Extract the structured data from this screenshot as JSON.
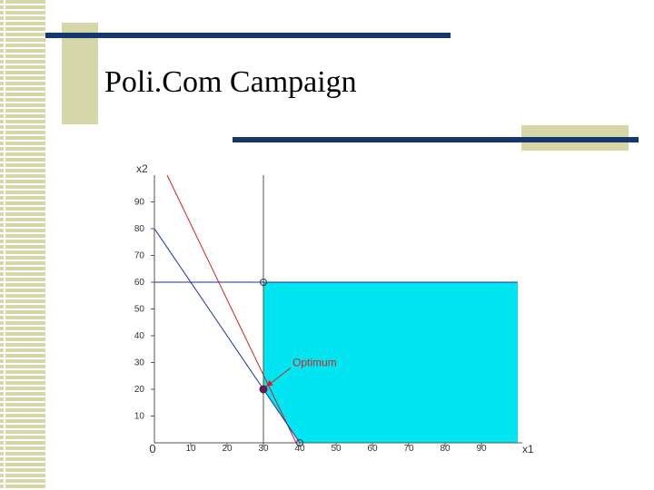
{
  "slide": {
    "title": "Poli.Com Campaign"
  },
  "colors": {
    "feasible_region": "#00e5f2",
    "constraint_red": "#d42020",
    "constraint_blue": "#1a2fa6",
    "boundary_line": "#1a2fa6",
    "axis": "#555555",
    "bar": "#14386b",
    "accent_tan": "#d6d7a8",
    "optimum_marker": "#7a0f55"
  },
  "chart_data": {
    "type": "line",
    "xlabel": "x1",
    "ylabel": "x2",
    "xlim": [
      0,
      100
    ],
    "ylim": [
      0,
      100
    ],
    "xticks": [
      0,
      10,
      20,
      30,
      40,
      50,
      60,
      70,
      80,
      90
    ],
    "yticks": [
      10,
      20,
      30,
      40,
      50,
      60,
      70,
      80,
      90
    ],
    "feasible_region": [
      [
        30,
        60
      ],
      [
        100,
        60
      ],
      [
        100,
        0
      ],
      [
        40,
        0
      ],
      [
        30,
        20
      ]
    ],
    "lines": [
      {
        "points": [
          [
            3.5,
            100
          ],
          [
            39,
            0
          ]
        ],
        "color": "#d42020"
      },
      {
        "points": [
          [
            0,
            80
          ],
          [
            40,
            0
          ]
        ],
        "color": "#1a2fa6"
      },
      {
        "points": [
          [
            30,
            0
          ],
          [
            30,
            100
          ]
        ],
        "color": "#555555"
      },
      {
        "points": [
          [
            0,
            60
          ],
          [
            100,
            60
          ]
        ],
        "color": "#1a2fa6"
      }
    ],
    "markers": [
      {
        "point": [
          30,
          60
        ],
        "style": "open"
      },
      {
        "point": [
          40,
          0
        ],
        "style": "open"
      },
      {
        "point": [
          30,
          20
        ],
        "style": "filled"
      }
    ],
    "annotation": {
      "text": "Optimum",
      "point": [
        30,
        20
      ],
      "text_at": [
        38,
        30
      ]
    }
  }
}
